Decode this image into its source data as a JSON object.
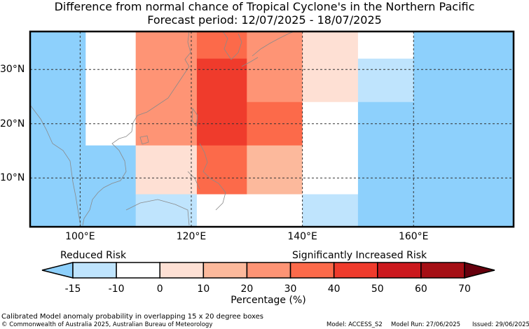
{
  "title": {
    "line1": "Difference from normal chance of Tropical Cyclone's in the Northern Pacific",
    "line2": "Forecast period: 12/07/2025 - 18/07/2025"
  },
  "map": {
    "lon_range": [
      91,
      178
    ],
    "lat_range": [
      1,
      37
    ],
    "lon_ticks": [
      {
        "value": 100,
        "label": "100°E"
      },
      {
        "value": 120,
        "label": "120°E"
      },
      {
        "value": 140,
        "label": "140°E"
      },
      {
        "value": 160,
        "label": "160°E"
      }
    ],
    "lat_ticks": [
      {
        "value": 30,
        "label": "30°N"
      },
      {
        "value": 20,
        "label": "20°N"
      },
      {
        "value": 10,
        "label": "10°N"
      }
    ],
    "grid_lines": true,
    "box_size": "15 x 20 degree boxes",
    "cells": [
      {
        "lon": [
          91,
          101
        ],
        "lat": [
          1,
          37
        ],
        "color": "#8dd0fc"
      },
      {
        "lon": [
          101,
          110
        ],
        "lat": [
          16,
          37
        ],
        "color": "#ffffff"
      },
      {
        "lon": [
          101,
          110
        ],
        "lat": [
          1,
          16
        ],
        "color": "#8dd0fc"
      },
      {
        "lon": [
          110,
          121
        ],
        "lat": [
          16,
          37
        ],
        "color": "#fe9475"
      },
      {
        "lon": [
          110,
          121
        ],
        "lat": [
          7,
          16
        ],
        "color": "#fee0d4"
      },
      {
        "lon": [
          110,
          121
        ],
        "lat": [
          1,
          7
        ],
        "color": "#bfe4fd"
      },
      {
        "lon": [
          121,
          130
        ],
        "lat": [
          32,
          37
        ],
        "color": "#fc6a4a"
      },
      {
        "lon": [
          121,
          130
        ],
        "lat": [
          16,
          32
        ],
        "color": "#ef3b2c"
      },
      {
        "lon": [
          121,
          130
        ],
        "lat": [
          7,
          16
        ],
        "color": "#fc6a4a"
      },
      {
        "lon": [
          121,
          130
        ],
        "lat": [
          1,
          7
        ],
        "color": "#ffffff"
      },
      {
        "lon": [
          130,
          140
        ],
        "lat": [
          24,
          37
        ],
        "color": "#fe9475"
      },
      {
        "lon": [
          130,
          140
        ],
        "lat": [
          16,
          24
        ],
        "color": "#fc6a4a"
      },
      {
        "lon": [
          130,
          140
        ],
        "lat": [
          7,
          16
        ],
        "color": "#fcb99c"
      },
      {
        "lon": [
          130,
          140
        ],
        "lat": [
          1,
          7
        ],
        "color": "#ffffff"
      },
      {
        "lon": [
          140,
          150
        ],
        "lat": [
          24,
          37
        ],
        "color": "#fee0d4"
      },
      {
        "lon": [
          140,
          150
        ],
        "lat": [
          7,
          24
        ],
        "color": "#ffffff"
      },
      {
        "lon": [
          140,
          150
        ],
        "lat": [
          1,
          7
        ],
        "color": "#bfe4fd"
      },
      {
        "lon": [
          150,
          160
        ],
        "lat": [
          32,
          37
        ],
        "color": "#ffffff"
      },
      {
        "lon": [
          150,
          160
        ],
        "lat": [
          24,
          32
        ],
        "color": "#bfe4fd"
      },
      {
        "lon": [
          150,
          160
        ],
        "lat": [
          1,
          24
        ],
        "color": "#8dd0fc"
      },
      {
        "lon": [
          160,
          178
        ],
        "lat": [
          1,
          37
        ],
        "color": "#8dd0fc"
      }
    ]
  },
  "legend": {
    "reduced_label": "Reduced Risk",
    "increased_label": "Significantly Increased Risk",
    "title": "Percentage (%)",
    "tick_labels": [
      "-15",
      "-10",
      "0",
      "10",
      "20",
      "30",
      "40",
      "50",
      "60",
      "70"
    ],
    "colors": [
      "#8dd0fc",
      "#bfe4fd",
      "#ffffff",
      "#fee0d4",
      "#fcb99c",
      "#fe9475",
      "#fc6a4a",
      "#ef3b2c",
      "#cb181d",
      "#a50f15",
      "#67000d"
    ]
  },
  "footer": {
    "description": "Calibrated Model anomaly probability in overlapping 15 x 20 degree boxes",
    "copyright": "© Commonwealth of Australia 2025, Australian Bureau of Meteorology",
    "model": "Model: ACCESS_S2",
    "model_run": "Model Run: 27/06/2025",
    "issued": "Issued: 29/06/2025"
  }
}
